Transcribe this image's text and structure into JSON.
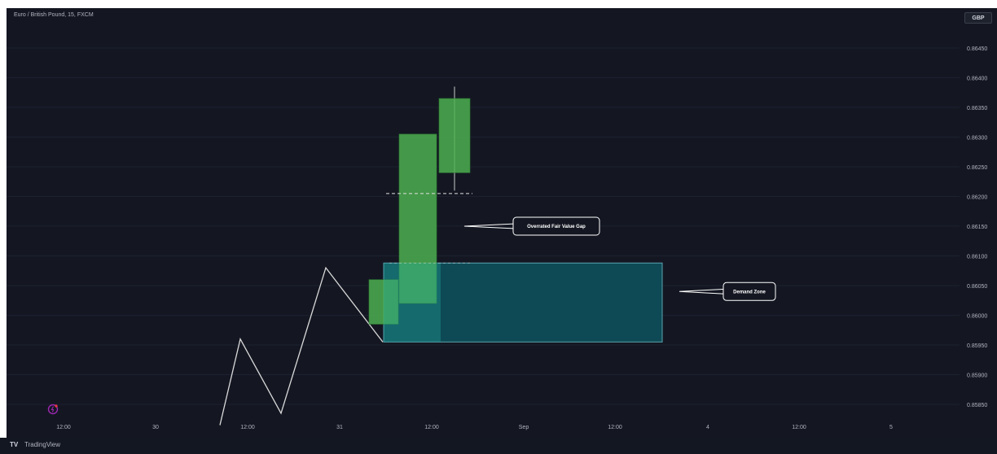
{
  "header": {
    "symbol": "Euro / British Pound, 15, FXCM",
    "currency": "GBP"
  },
  "footer": {
    "brand": "TradingView",
    "logo": "TV"
  },
  "colors": {
    "background": "#141722",
    "bull_candle": "#4caf50",
    "zone_fill": "#0d4a55",
    "zone_border": "#5aa3b0",
    "line": "#d9d9d9",
    "text": "#b2b5be"
  },
  "chart_data": {
    "type": "candlestick",
    "y_axis": {
      "ticks": [
        "0.86450",
        "0.86400",
        "0.86350",
        "0.86300",
        "0.86250",
        "0.86200",
        "0.86150",
        "0.86100",
        "0.86050",
        "0.86000",
        "0.85950",
        "0.85900",
        "0.85850"
      ],
      "range": [
        0.858,
        0.8649
      ]
    },
    "x_axis": {
      "ticks": [
        "12:00",
        "30",
        "12:00",
        "31",
        "12:00",
        "Sep",
        "12:00",
        "4",
        "12:00",
        "5"
      ]
    },
    "price_path": [
      {
        "x": 0.0,
        "y": 0.85815
      },
      {
        "x": 1.0,
        "y": 0.8596
      },
      {
        "x": 3.0,
        "y": 0.85835
      },
      {
        "x": 5.2,
        "y": 0.8608
      },
      {
        "x": 8.0,
        "y": 0.85955
      }
    ],
    "candles": [
      {
        "t": 8.0,
        "open": 0.85985,
        "close": 0.8606,
        "high": 0.8606,
        "low": 0.85985
      },
      {
        "t": 9.5,
        "open": 0.8602,
        "close": 0.86305,
        "high": 0.86305,
        "low": 0.8602
      },
      {
        "t": 11.0,
        "open": 0.8624,
        "close": 0.86365,
        "high": 0.86385,
        "low": 0.8621
      }
    ],
    "fvg_line": 0.86205,
    "demand_zone": {
      "top": 0.86088,
      "bottom": 0.85955
    },
    "annotations": [
      {
        "label": "Overrated Fair Value Gap",
        "price": 0.8615
      },
      {
        "label": "Demand Zone",
        "price": 0.8604
      }
    ]
  }
}
